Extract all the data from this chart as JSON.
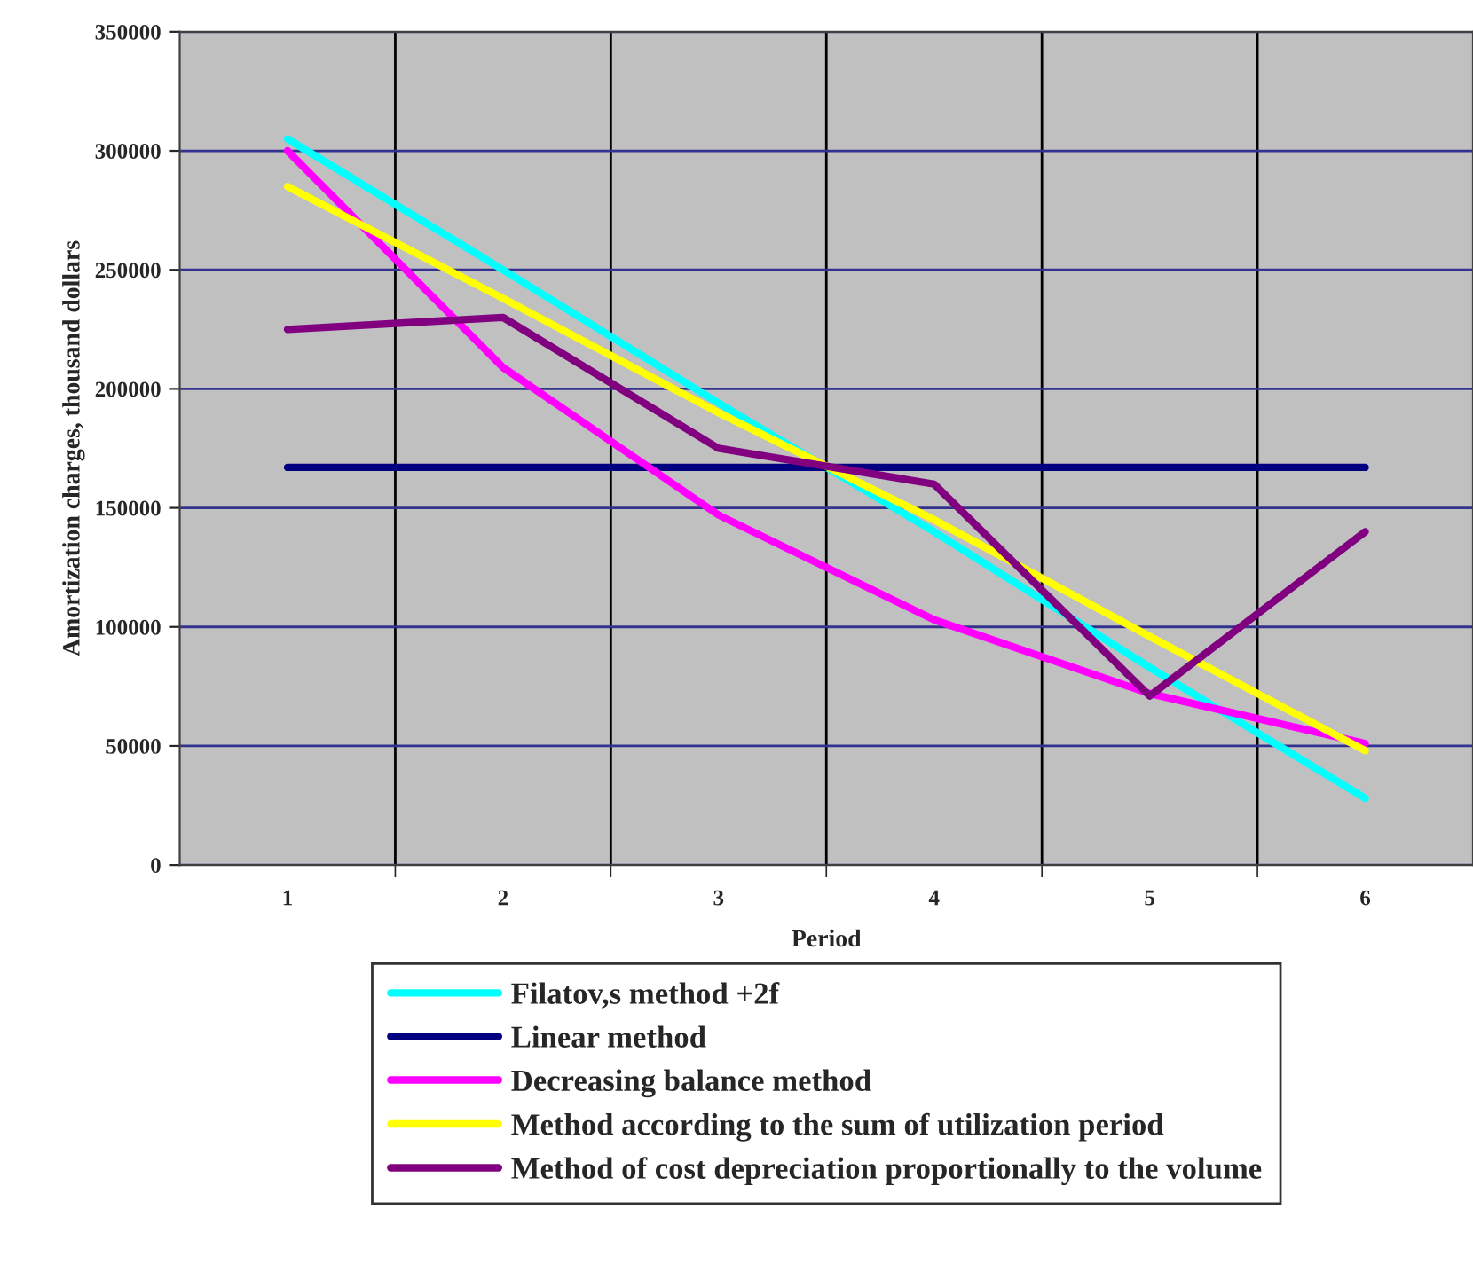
{
  "chart_data": {
    "type": "line",
    "xlabel": "Period",
    "ylabel": "Amortization charges, thousand dollars",
    "categories": [
      "1",
      "2",
      "3",
      "4",
      "5",
      "6"
    ],
    "series": [
      {
        "name": "Filatov,s method +2f",
        "color": "#00ffff",
        "values": [
          305000,
          250000,
          194000,
          140000,
          83000,
          28000
        ]
      },
      {
        "name": "Linear method",
        "color": "#000080",
        "values": [
          167000,
          167000,
          167000,
          167000,
          167000,
          167000
        ]
      },
      {
        "name": "Decreasing balance method",
        "color": "#ff00ff",
        "values": [
          300000,
          209000,
          147000,
          103000,
          72000,
          51000
        ]
      },
      {
        "name": "Method according to the sum of utilization period",
        "color": "#ffff00",
        "values": [
          285000,
          238000,
          190000,
          145000,
          96000,
          48000
        ]
      },
      {
        "name": "Method of cost depreciation proportionally to the volume",
        "color": "#800080",
        "values": [
          225000,
          230000,
          175000,
          160000,
          71000,
          140000
        ]
      }
    ],
    "ylim": [
      0,
      350000
    ],
    "yticks": [
      0,
      50000,
      100000,
      150000,
      200000,
      250000,
      300000,
      350000
    ],
    "grid": true,
    "legend": "bottom",
    "line_style": "solid",
    "marker": "none"
  }
}
